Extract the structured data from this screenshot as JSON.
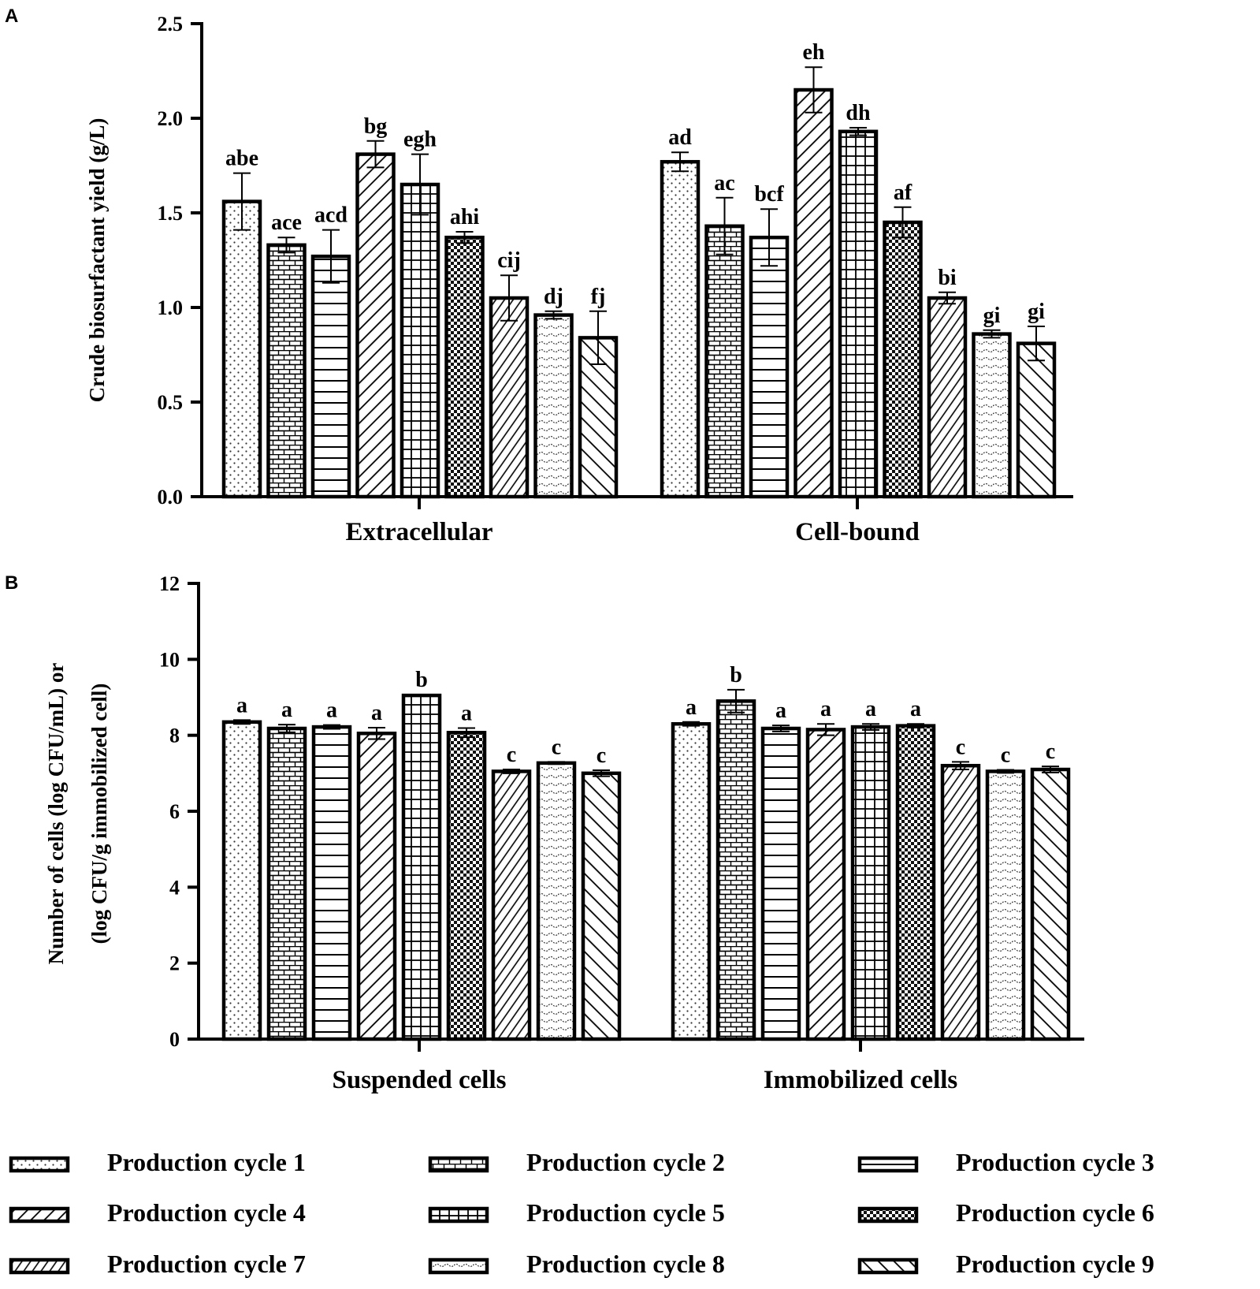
{
  "chart_data": [
    {
      "panel": "A",
      "type": "bar",
      "ylabel": "Crude biosurfactant yield (g/L)",
      "xlabel": "",
      "ylim": [
        0,
        2.5
      ],
      "yticks": [
        "0.0",
        "0.5",
        "1.0",
        "1.5",
        "2.0",
        "2.5"
      ],
      "ytick_values": [
        0,
        0.5,
        1.0,
        1.5,
        2.0,
        2.5
      ],
      "groups": [
        {
          "name": "Extracellular",
          "values": [
            1.56,
            1.33,
            1.27,
            1.81,
            1.65,
            1.37,
            1.05,
            0.96,
            0.84
          ],
          "errors": [
            0.15,
            0.04,
            0.14,
            0.07,
            0.16,
            0.03,
            0.12,
            0.02,
            0.14
          ],
          "labels": [
            "abe",
            "ace",
            "acd",
            "bg",
            "egh",
            "ahi",
            "cij",
            "dj",
            "fj"
          ]
        },
        {
          "name": "Cell-bound",
          "values": [
            1.77,
            1.43,
            1.37,
            2.15,
            1.93,
            1.45,
            1.05,
            0.86,
            0.81
          ],
          "errors": [
            0.05,
            0.15,
            0.15,
            0.12,
            0.02,
            0.08,
            0.03,
            0.02,
            0.09
          ],
          "labels": [
            "ad",
            "ac",
            "bcf",
            "eh",
            "dh",
            "af",
            "bi",
            "gi",
            "gi"
          ]
        }
      ]
    },
    {
      "panel": "B",
      "type": "bar",
      "ylabel_lines": [
        "Number of cells (log CFU/mL) or",
        "(log CFU/g immobilized cell)"
      ],
      "xlabel": "",
      "ylim": [
        0,
        12
      ],
      "yticks": [
        "0",
        "2",
        "4",
        "6",
        "8",
        "10",
        "12"
      ],
      "ytick_values": [
        0,
        2,
        4,
        6,
        8,
        10,
        12
      ],
      "groups": [
        {
          "name": "Suspended cells",
          "values": [
            8.35,
            8.18,
            8.22,
            8.05,
            9.05,
            8.07,
            7.05,
            7.27,
            7.0
          ],
          "errors": [
            0.05,
            0.1,
            0.05,
            0.15,
            0.02,
            0.12,
            0.05,
            0.03,
            0.08
          ],
          "labels": [
            "a",
            "a",
            "a",
            "a",
            "b",
            "a",
            "c",
            "c",
            "c"
          ]
        },
        {
          "name": "Immobilized cells",
          "values": [
            8.3,
            8.9,
            8.18,
            8.15,
            8.22,
            8.25,
            7.2,
            7.05,
            7.1
          ],
          "errors": [
            0.05,
            0.3,
            0.08,
            0.15,
            0.08,
            0.05,
            0.1,
            0.04,
            0.08
          ],
          "labels": [
            "a",
            "b",
            "a",
            "a",
            "a",
            "a",
            "c",
            "c",
            "c"
          ]
        }
      ]
    }
  ],
  "series_names": [
    "Production cycle 1",
    "Production cycle 2",
    "Production cycle 3",
    "Production cycle 4",
    "Production cycle 5",
    "Production cycle 6",
    "Production cycle 7",
    "Production cycle 8",
    "Production cycle 9"
  ],
  "series_patterns": [
    "dots",
    "bricks",
    "horizontal",
    "diag-up",
    "grid",
    "checker",
    "diag-up-dense",
    "wavy",
    "diag-down"
  ]
}
